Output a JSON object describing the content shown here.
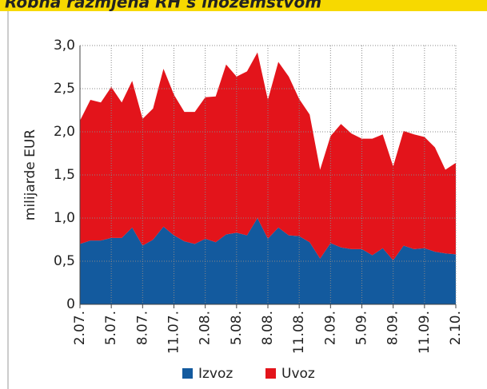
{
  "chart_data": {
    "type": "area",
    "stacked": true,
    "title": "Robna razmjena RH s inozemstvom",
    "y_label": "milijarde EUR",
    "categories": [
      "2.07.",
      null,
      null,
      "5.07.",
      null,
      null,
      "8.07.",
      null,
      null,
      "11.07.",
      null,
      null,
      "2.08.",
      null,
      null,
      "5.08.",
      null,
      null,
      "8.08.",
      null,
      null,
      "11.08.",
      null,
      null,
      "2.09.",
      null,
      null,
      "5.09.",
      null,
      null,
      "8.09.",
      null,
      null,
      "11.09.",
      null,
      null,
      "2.10."
    ],
    "series": [
      {
        "name": "Izvoz",
        "color": "#135a9e",
        "values": [
          0.7,
          0.74,
          0.74,
          0.77,
          0.77,
          0.89,
          0.68,
          0.75,
          0.9,
          0.8,
          0.73,
          0.7,
          0.76,
          0.72,
          0.81,
          0.83,
          0.8,
          1.0,
          0.76,
          0.89,
          0.8,
          0.79,
          0.72,
          0.53,
          0.71,
          0.66,
          0.64,
          0.64,
          0.57,
          0.65,
          0.51,
          0.68,
          0.64,
          0.65,
          0.61,
          0.59,
          0.58
        ]
      },
      {
        "name": "Uvoz",
        "color": "#e3141b",
        "values": [
          1.43,
          1.63,
          1.6,
          1.75,
          1.57,
          1.7,
          1.47,
          1.52,
          1.83,
          1.63,
          1.5,
          1.53,
          1.64,
          1.69,
          1.97,
          1.81,
          1.9,
          1.92,
          1.61,
          1.92,
          1.84,
          1.59,
          1.48,
          1.03,
          1.24,
          1.43,
          1.34,
          1.28,
          1.35,
          1.32,
          1.09,
          1.33,
          1.33,
          1.29,
          1.21,
          0.97,
          1.06
        ]
      }
    ],
    "ylim": [
      0,
      3
    ],
    "yticks": [
      0,
      {
        "value": 0.5,
        "label": "0,5"
      },
      {
        "value": 1,
        "label": "1,0"
      },
      {
        "value": 1.5,
        "label": "1,5"
      },
      {
        "value": 2,
        "label": "2,0"
      },
      {
        "value": 2.5,
        "label": "2,5"
      },
      {
        "value": 3,
        "label": "3,0"
      }
    ],
    "grid": true,
    "legend": "bottom"
  }
}
